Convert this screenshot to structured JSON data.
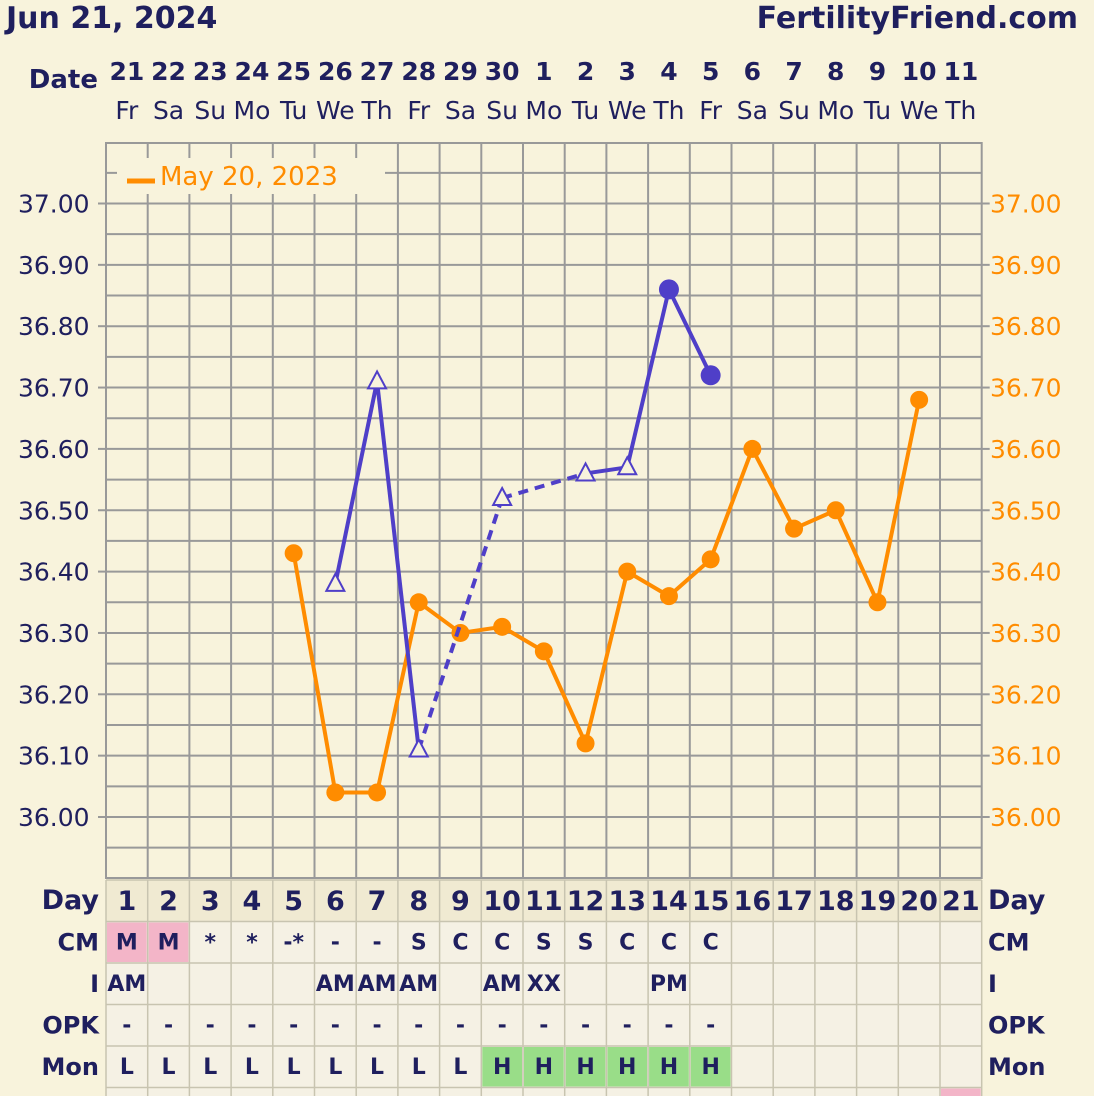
{
  "header": {
    "date": "Jun 21, 2024",
    "site": "FertilityFriend.com"
  },
  "labels": {
    "date": "Date",
    "day": "Day",
    "rows": [
      "CM",
      "I",
      "OPK",
      "Mon"
    ]
  },
  "legend": {
    "label": "May 20, 2023",
    "color": "#ff8c00"
  },
  "colors": {
    "current": "#4f3fc8",
    "overlay": "#ff8c00",
    "grid": "#999999",
    "background": "#f8f3dc",
    "menstruation_cell": "#f3b5c8",
    "high_cell": "#99dd88",
    "text": "#1f1f5e"
  },
  "chart_data": {
    "type": "line",
    "title": "",
    "unit": "°C",
    "ylim": [
      35.93,
      37.08
    ],
    "y_ticks": [
      "37.00",
      "36.90",
      "36.80",
      "36.70",
      "36.60",
      "36.50",
      "36.40",
      "36.30",
      "36.20",
      "36.10",
      "36.00"
    ],
    "grid": true,
    "legend_position": "top-left",
    "dates": [
      "21",
      "22",
      "23",
      "24",
      "25",
      "26",
      "27",
      "28",
      "29",
      "30",
      "1",
      "2",
      "3",
      "4",
      "5",
      "6",
      "7",
      "8",
      "9",
      "10",
      "11"
    ],
    "weekdays": [
      "Fr",
      "Sa",
      "Su",
      "Mo",
      "Tu",
      "We",
      "Th",
      "Fr",
      "Sa",
      "Su",
      "Mo",
      "Tu",
      "We",
      "Th",
      "Fr",
      "Sa",
      "Su",
      "Mo",
      "Tu",
      "We",
      "Th"
    ],
    "cycle_days": [
      "1",
      "2",
      "3",
      "4",
      "5",
      "6",
      "7",
      "8",
      "9",
      "10",
      "11",
      "12",
      "13",
      "14",
      "15",
      "16",
      "17",
      "18",
      "19",
      "20",
      "21"
    ],
    "series": [
      {
        "color": "#4f3fc8",
        "points": [
          {
            "day": 6,
            "temp": 36.38,
            "marker": "triangle"
          },
          {
            "day": 7,
            "temp": 36.71,
            "marker": "triangle"
          },
          {
            "day": 8,
            "temp": 36.11,
            "marker": "triangle"
          },
          {
            "day": 10,
            "temp": 36.52,
            "marker": "triangle"
          },
          {
            "day": 12,
            "temp": 36.56,
            "marker": "triangle"
          },
          {
            "day": 13,
            "temp": 36.57,
            "marker": "triangle"
          },
          {
            "day": 14,
            "temp": 36.86,
            "marker": "circle"
          },
          {
            "day": 15,
            "temp": 36.72,
            "marker": "circle"
          }
        ],
        "segments": [
          {
            "from": 6,
            "to": 7,
            "style": "solid"
          },
          {
            "from": 7,
            "to": 8,
            "style": "solid"
          },
          {
            "from": 8,
            "to": 10,
            "style": "dashed"
          },
          {
            "from": 10,
            "to": 12,
            "style": "dashed"
          },
          {
            "from": 12,
            "to": 13,
            "style": "solid"
          },
          {
            "from": 13,
            "to": 14,
            "style": "solid"
          },
          {
            "from": 14,
            "to": 15,
            "style": "solid"
          }
        ]
      },
      {
        "name": "May 20, 2023",
        "color": "#ff8c00",
        "points": [
          {
            "day": 5,
            "temp": 36.43
          },
          {
            "day": 6,
            "temp": 36.04
          },
          {
            "day": 7,
            "temp": 36.04
          },
          {
            "day": 8,
            "temp": 36.35
          },
          {
            "day": 9,
            "temp": 36.3
          },
          {
            "day": 10,
            "temp": 36.31
          },
          {
            "day": 11,
            "temp": 36.27
          },
          {
            "day": 12,
            "temp": 36.12
          },
          {
            "day": 13,
            "temp": 36.4
          },
          {
            "day": 14,
            "temp": 36.36
          },
          {
            "day": 15,
            "temp": 36.42
          },
          {
            "day": 16,
            "temp": 36.6
          },
          {
            "day": 17,
            "temp": 36.47
          },
          {
            "day": 18,
            "temp": 36.5
          },
          {
            "day": 19,
            "temp": 36.35
          },
          {
            "day": 20,
            "temp": 36.68
          }
        ]
      }
    ],
    "table": {
      "CM": [
        "M",
        "M",
        "*",
        "*",
        "-*",
        "-",
        "-",
        "S",
        "C",
        "C",
        "S",
        "S",
        "C",
        "C",
        "C",
        "",
        "",
        "",
        "",
        "",
        ""
      ],
      "I": [
        "AM",
        "",
        "",
        "",
        "",
        "AM",
        "AM",
        "AM",
        "",
        "AM",
        "XX",
        "",
        "",
        "PM",
        "",
        "",
        "",
        "",
        "",
        "",
        ""
      ],
      "OPK": [
        "-",
        "-",
        "-",
        "-",
        "-",
        "-",
        "-",
        "-",
        "-",
        "-",
        "-",
        "-",
        "-",
        "-",
        "-",
        "",
        "",
        "",
        "",
        "",
        ""
      ],
      "Mon": [
        "L",
        "L",
        "L",
        "L",
        "L",
        "L",
        "L",
        "L",
        "L",
        "H",
        "H",
        "H",
        "H",
        "H",
        "H",
        "",
        "",
        "",
        "",
        "",
        ""
      ]
    }
  }
}
